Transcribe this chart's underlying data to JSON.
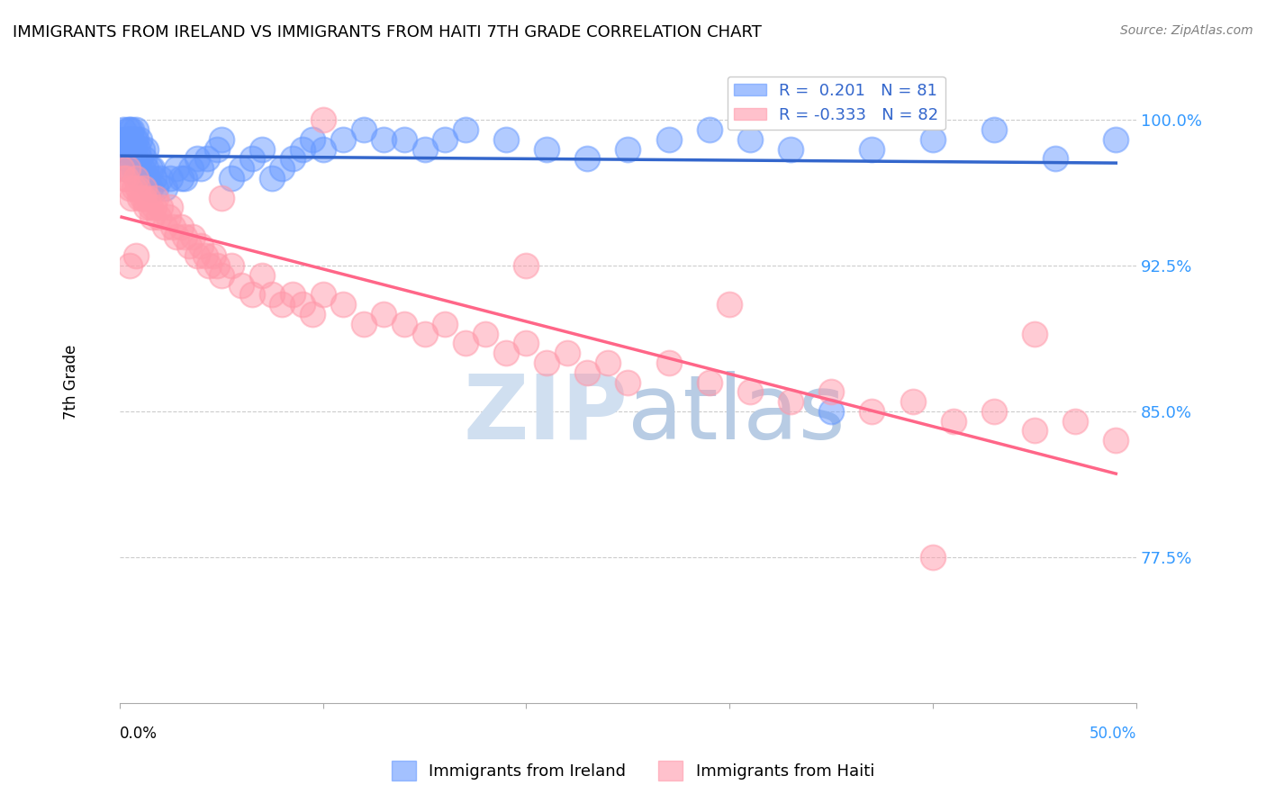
{
  "title": "IMMIGRANTS FROM IRELAND VS IMMIGRANTS FROM HAITI 7TH GRADE CORRELATION CHART",
  "source": "Source: ZipAtlas.com",
  "ylabel": "7th Grade",
  "ytick_labels": [
    "100.0%",
    "92.5%",
    "85.0%",
    "77.5%"
  ],
  "ytick_values": [
    1.0,
    0.925,
    0.85,
    0.775
  ],
  "xlim": [
    0.0,
    0.5
  ],
  "ylim": [
    0.7,
    1.03
  ],
  "ireland_R": 0.201,
  "ireland_N": 81,
  "haiti_R": -0.333,
  "haiti_N": 82,
  "ireland_color": "#6699ff",
  "haiti_color": "#ff99aa",
  "ireland_line_color": "#3366cc",
  "haiti_line_color": "#ff6688",
  "grid_color": "#cccccc",
  "ireland_scatter_x": [
    0.001,
    0.002,
    0.002,
    0.003,
    0.003,
    0.003,
    0.004,
    0.004,
    0.004,
    0.005,
    0.005,
    0.005,
    0.006,
    0.006,
    0.006,
    0.007,
    0.007,
    0.007,
    0.008,
    0.008,
    0.008,
    0.009,
    0.009,
    0.01,
    0.01,
    0.01,
    0.011,
    0.011,
    0.012,
    0.012,
    0.013,
    0.013,
    0.014,
    0.015,
    0.015,
    0.016,
    0.017,
    0.018,
    0.02,
    0.022,
    0.025,
    0.028,
    0.03,
    0.032,
    0.035,
    0.038,
    0.04,
    0.043,
    0.048,
    0.05,
    0.055,
    0.06,
    0.065,
    0.07,
    0.075,
    0.08,
    0.085,
    0.09,
    0.095,
    0.1,
    0.11,
    0.12,
    0.13,
    0.14,
    0.15,
    0.16,
    0.17,
    0.19,
    0.21,
    0.23,
    0.25,
    0.27,
    0.29,
    0.31,
    0.33,
    0.35,
    0.37,
    0.4,
    0.43,
    0.46,
    0.49
  ],
  "ireland_scatter_y": [
    0.99,
    0.995,
    0.985,
    0.99,
    0.98,
    0.975,
    0.995,
    0.99,
    0.985,
    0.995,
    0.99,
    0.985,
    0.995,
    0.99,
    0.98,
    0.99,
    0.985,
    0.975,
    0.995,
    0.99,
    0.98,
    0.985,
    0.975,
    0.99,
    0.98,
    0.97,
    0.985,
    0.975,
    0.98,
    0.97,
    0.985,
    0.975,
    0.97,
    0.975,
    0.965,
    0.975,
    0.97,
    0.965,
    0.97,
    0.965,
    0.97,
    0.975,
    0.97,
    0.97,
    0.975,
    0.98,
    0.975,
    0.98,
    0.985,
    0.99,
    0.97,
    0.975,
    0.98,
    0.985,
    0.97,
    0.975,
    0.98,
    0.985,
    0.99,
    0.985,
    0.99,
    0.995,
    0.99,
    0.99,
    0.985,
    0.99,
    0.995,
    0.99,
    0.985,
    0.98,
    0.985,
    0.99,
    0.995,
    0.99,
    0.985,
    0.85,
    0.985,
    0.99,
    0.995,
    0.98,
    0.99
  ],
  "haiti_scatter_x": [
    0.001,
    0.002,
    0.003,
    0.004,
    0.005,
    0.006,
    0.007,
    0.008,
    0.009,
    0.01,
    0.011,
    0.012,
    0.013,
    0.014,
    0.015,
    0.016,
    0.017,
    0.018,
    0.019,
    0.02,
    0.022,
    0.024,
    0.026,
    0.028,
    0.03,
    0.032,
    0.034,
    0.036,
    0.038,
    0.04,
    0.042,
    0.044,
    0.046,
    0.048,
    0.05,
    0.055,
    0.06,
    0.065,
    0.07,
    0.075,
    0.08,
    0.085,
    0.09,
    0.095,
    0.1,
    0.11,
    0.12,
    0.13,
    0.14,
    0.15,
    0.16,
    0.17,
    0.18,
    0.19,
    0.2,
    0.21,
    0.22,
    0.23,
    0.24,
    0.25,
    0.27,
    0.29,
    0.31,
    0.33,
    0.35,
    0.37,
    0.39,
    0.41,
    0.43,
    0.45,
    0.47,
    0.49,
    0.005,
    0.008,
    0.012,
    0.025,
    0.05,
    0.1,
    0.2,
    0.3,
    0.4,
    0.45
  ],
  "haiti_scatter_y": [
    0.975,
    0.97,
    0.97,
    0.975,
    0.965,
    0.96,
    0.965,
    0.97,
    0.965,
    0.96,
    0.96,
    0.965,
    0.955,
    0.96,
    0.955,
    0.95,
    0.955,
    0.96,
    0.95,
    0.955,
    0.945,
    0.95,
    0.945,
    0.94,
    0.945,
    0.94,
    0.935,
    0.94,
    0.93,
    0.935,
    0.93,
    0.925,
    0.93,
    0.925,
    0.92,
    0.925,
    0.915,
    0.91,
    0.92,
    0.91,
    0.905,
    0.91,
    0.905,
    0.9,
    0.91,
    0.905,
    0.895,
    0.9,
    0.895,
    0.89,
    0.895,
    0.885,
    0.89,
    0.88,
    0.885,
    0.875,
    0.88,
    0.87,
    0.875,
    0.865,
    0.875,
    0.865,
    0.86,
    0.855,
    0.86,
    0.85,
    0.855,
    0.845,
    0.85,
    0.84,
    0.845,
    0.835,
    0.925,
    0.93,
    0.96,
    0.955,
    0.96,
    1.0,
    0.925,
    0.905,
    0.775,
    0.89
  ]
}
